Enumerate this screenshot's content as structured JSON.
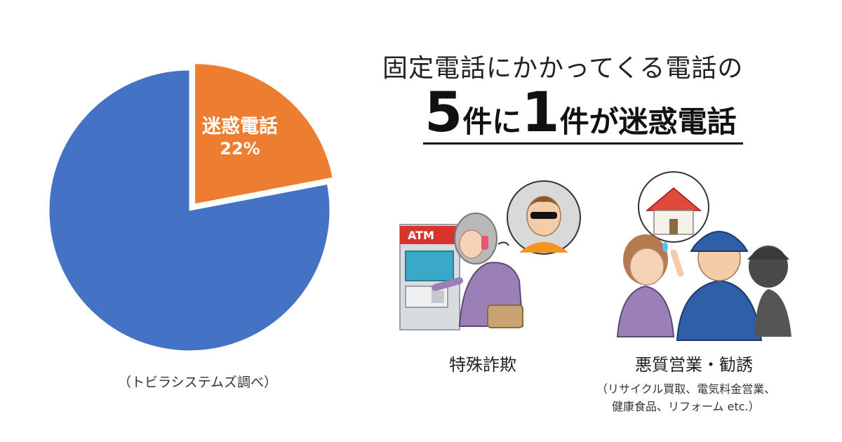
{
  "chart_data": {
    "type": "pie",
    "slices": [
      {
        "label": "迷惑電話",
        "value": 22,
        "value_label": "22%",
        "color": "#ED7D31",
        "exploded": true
      },
      {
        "label": "",
        "value": 78,
        "color": "#4472C4"
      }
    ]
  },
  "source_note": "（トビラシステムズ調べ）",
  "headline": {
    "line1": "固定電話にかかってくる電話の",
    "part1": "5",
    "part2": "件に",
    "part3": "1",
    "part4": "件が迷惑電話"
  },
  "illustrations": {
    "atm_sign": "ATM",
    "fraud_caption": "特殊詐欺",
    "sales_caption": "悪質営業・勧誘",
    "sales_note_line1": "（リサイクル買取、電気料金営業、",
    "sales_note_line2": "健康食品、リフォーム etc.）"
  }
}
